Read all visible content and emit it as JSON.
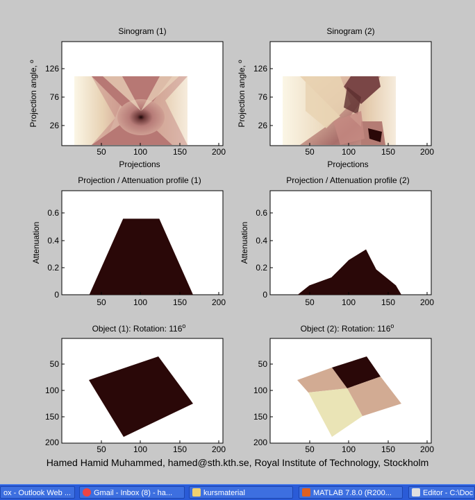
{
  "chart_data": [
    {
      "type": "heatmap",
      "title": "Sinogram (1)",
      "xlabel": "Projections",
      "ylabel": "Projection angle, º",
      "xticks": [
        50,
        100,
        150,
        200
      ],
      "yticks": [
        26,
        76,
        126
      ]
    },
    {
      "type": "heatmap",
      "title": "Sinogram (2)",
      "xlabel": "Projections",
      "ylabel": "Projection angle, º",
      "xticks": [
        50,
        100,
        150,
        200
      ],
      "yticks": [
        26,
        76,
        126
      ]
    },
    {
      "type": "area",
      "title": "Projection / Attenuation profile (1)",
      "ylabel": "Attenuation",
      "xlim": [
        0,
        205
      ],
      "ylim": [
        0,
        0.78
      ],
      "xticks": [
        50,
        100,
        150,
        200
      ],
      "yticks": [
        "0",
        "0.2",
        "0.4",
        "0.6"
      ],
      "x": [
        35,
        78,
        124,
        167
      ],
      "y": [
        0,
        0.57,
        0.57,
        0
      ]
    },
    {
      "type": "area",
      "title": "Projection / Attenuation profile (2)",
      "ylabel": "Attenuation",
      "xlim": [
        0,
        205
      ],
      "ylim": [
        0,
        0.78
      ],
      "xticks": [
        50,
        100,
        150,
        200
      ],
      "yticks": [
        "0",
        "0.2",
        "0.4",
        "0.6"
      ],
      "x": [
        35,
        50,
        78,
        90,
        100,
        122,
        128,
        135,
        160,
        167
      ],
      "y": [
        0,
        0.07,
        0.13,
        0.2,
        0.26,
        0.34,
        0.27,
        0.19,
        0.07,
        0
      ],
      "color": "#2a0808"
    },
    {
      "type": "heatmap",
      "title": "Object (1): Rotation: 116",
      "title_sup": "o",
      "xticks": [
        50,
        100,
        150,
        200
      ],
      "yticks": [
        50,
        100,
        150,
        200
      ],
      "xlim": [
        0,
        205
      ],
      "ylim": [
        0,
        205
      ],
      "polygon": [
        [
          122,
          35
        ],
        [
          166,
          125
        ],
        [
          78,
          168
        ],
        [
          35,
          78
        ]
      ],
      "color": "#2a0808"
    },
    {
      "type": "heatmap",
      "title": "Object (2): Rotation: 116",
      "title_sup": "o",
      "xticks": [
        50,
        100,
        150,
        200
      ],
      "yticks": [
        50,
        100,
        150,
        200
      ],
      "xlim": [
        0,
        205
      ],
      "ylim": [
        0,
        205
      ],
      "colors": [
        "#d2ab93",
        "#2a0808",
        "#eae4b6"
      ]
    }
  ],
  "footer": "Hamed Hamid Muhammed, hamed@sth.kth.se, Royal Institute of Technology, Stockholm",
  "taskbar": {
    "items": [
      {
        "label": "ox - Outlook Web ...",
        "icon": "outlook-icon",
        "color": "#e8c040"
      },
      {
        "label": "Gmail - Inbox (8) - ha...",
        "icon": "chrome-icon",
        "color": "#e44"
      },
      {
        "label": "kursmaterial",
        "icon": "folder-icon",
        "color": "#f0d070"
      },
      {
        "label": "MATLAB 7.8.0 (R200...",
        "icon": "matlab-icon",
        "color": "#e06020"
      },
      {
        "label": "Editor - C:\\Doc",
        "icon": "editor-icon",
        "color": "#e0e0e0"
      }
    ]
  }
}
